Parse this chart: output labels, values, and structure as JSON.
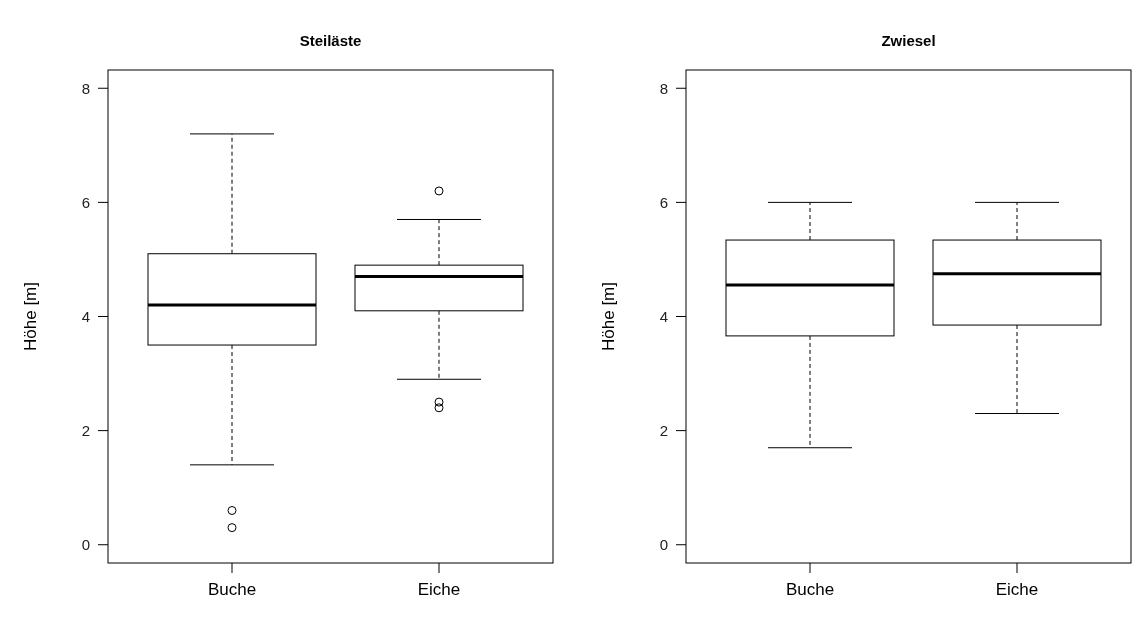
{
  "chart_data": [
    {
      "type": "box",
      "title": "Steiläste",
      "ylabel": "Höhe [m]",
      "categories": [
        "Buche",
        "Eiche"
      ],
      "ylim": [
        -0.32,
        8.32
      ],
      "yticks": [
        0,
        2,
        4,
        6,
        8
      ],
      "grid": false,
      "boxes": [
        {
          "low": 1.4,
          "q1": 3.5,
          "median": 4.2,
          "q3": 5.1,
          "high": 7.2,
          "outliers": [
            0.6,
            0.3
          ]
        },
        {
          "low": 2.9,
          "q1": 4.1,
          "median": 4.7,
          "q3": 4.9,
          "high": 5.7,
          "outliers": [
            6.2,
            2.5,
            2.4
          ]
        }
      ]
    },
    {
      "type": "box",
      "title": "Zwiesel",
      "ylabel": "Höhe [m]",
      "categories": [
        "Buche",
        "Eiche"
      ],
      "ylim": [
        -0.32,
        8.32
      ],
      "yticks": [
        0,
        2,
        4,
        6,
        8
      ],
      "grid": false,
      "boxes": [
        {
          "low": 1.7,
          "q1": 3.66,
          "median": 4.55,
          "q3": 5.34,
          "high": 6.0
        },
        {
          "low": 2.3,
          "q1": 3.85,
          "median": 4.75,
          "q3": 5.34,
          "high": 6.0
        }
      ]
    }
  ]
}
